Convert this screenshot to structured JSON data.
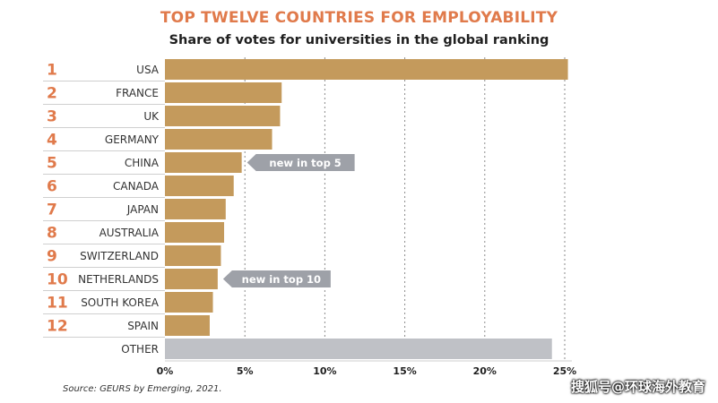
{
  "chart_data": {
    "type": "bar",
    "orientation": "horizontal",
    "title": "TOP TWELVE COUNTRIES FOR EMPLOYABILITY",
    "subtitle": "Share of votes for universities in the global ranking",
    "ranks": [
      "1",
      "2",
      "3",
      "4",
      "5",
      "6",
      "7",
      "8",
      "9",
      "10",
      "11",
      "12",
      ""
    ],
    "categories": [
      "USA",
      "FRANCE",
      "UK",
      "GERMANY",
      "CHINA",
      "CANADA",
      "JAPAN",
      "AUSTRALIA",
      "SWITZERLAND",
      "NETHERLANDS",
      "SOUTH KOREA",
      "SPAIN",
      "OTHER"
    ],
    "values": [
      25.2,
      7.3,
      7.2,
      6.7,
      4.8,
      4.3,
      3.8,
      3.7,
      3.5,
      3.3,
      3.0,
      2.8,
      24.2
    ],
    "x_ticks": [
      "0%",
      "5%",
      "10%",
      "15%",
      "20%",
      "25%"
    ],
    "xlim": [
      0,
      25
    ],
    "grid": "vertical dotted",
    "annotations": [
      {
        "category": "CHINA",
        "text": "new in top 5"
      },
      {
        "category": "NETHERLANDS",
        "text": "new in top 10"
      }
    ],
    "colors": {
      "bar": "#c49a5c",
      "other_bar": "#bfc1c6",
      "rank": "#e07a4b",
      "annotation": "#9ea1a8",
      "title": "#e07a4b"
    }
  },
  "source": "Source: GEURS by Emerging, 2021.",
  "watermark": "搜狐号@环球海外教育"
}
